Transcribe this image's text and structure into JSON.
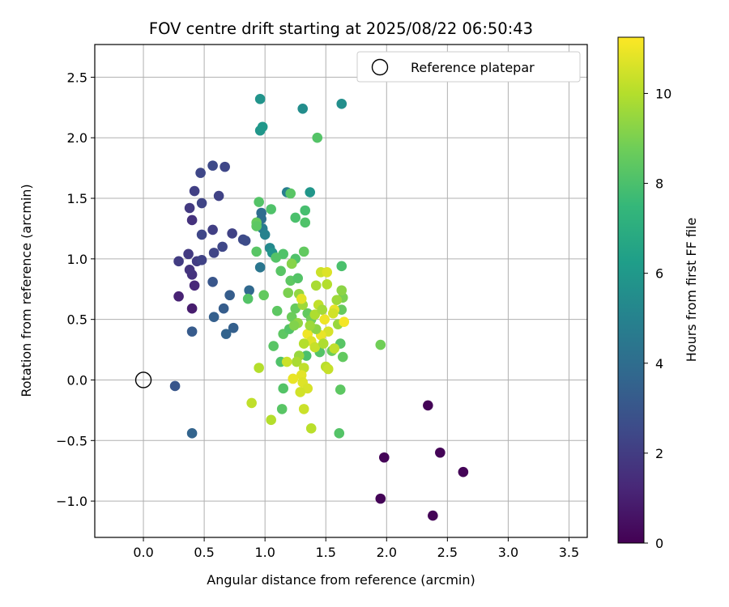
{
  "chart_data": {
    "type": "scatter",
    "title": "FOV centre drift starting at 2025/08/22 06:50:43",
    "xlabel": "Angular distance from reference (arcmin)",
    "ylabel": "Rotation from reference (arcmin)",
    "xlim": [
      -0.4,
      3.65
    ],
    "ylim": [
      -1.3,
      2.77
    ],
    "xticks": [
      "0.0",
      "0.5",
      "1.0",
      "1.5",
      "2.0",
      "2.5",
      "3.0",
      "3.5"
    ],
    "yticks": [
      "−1.0",
      "−0.5",
      "0.0",
      "0.5",
      "1.0",
      "1.5",
      "2.0",
      "2.5"
    ],
    "grid": true,
    "legend": {
      "placement": "top-right",
      "entries": [
        "Reference platepar"
      ]
    },
    "reference_point": {
      "name": "Reference platepar",
      "x": 0.0,
      "y": 0.0,
      "marker": "open-circle"
    },
    "colorbar": {
      "label": "Hours from first FF file",
      "range": [
        0,
        11.25
      ],
      "ticks": [
        "0",
        "2",
        "4",
        "6",
        "8",
        "10"
      ],
      "colormap": "viridis"
    },
    "points": [
      {
        "x": 1.95,
        "y": -0.98,
        "h": 0.1
      },
      {
        "x": 1.98,
        "y": -0.64,
        "h": 0.1
      },
      {
        "x": 2.34,
        "y": -0.21,
        "h": 0.1
      },
      {
        "x": 2.38,
        "y": -1.12,
        "h": 0.1
      },
      {
        "x": 2.44,
        "y": -0.6,
        "h": 0.1
      },
      {
        "x": 2.63,
        "y": -0.76,
        "h": 0.1
      },
      {
        "x": 0.29,
        "y": 0.69,
        "h": 1.1
      },
      {
        "x": 0.4,
        "y": 0.59,
        "h": 0.9
      },
      {
        "x": 0.42,
        "y": 0.78,
        "h": 1.3
      },
      {
        "x": 0.4,
        "y": 0.87,
        "h": 1.6
      },
      {
        "x": 0.38,
        "y": 0.91,
        "h": 1.7
      },
      {
        "x": 0.29,
        "y": 0.98,
        "h": 2.0
      },
      {
        "x": 0.37,
        "y": 1.04,
        "h": 1.9
      },
      {
        "x": 0.44,
        "y": 0.98,
        "h": 2.0
      },
      {
        "x": 0.48,
        "y": 0.99,
        "h": 2.2
      },
      {
        "x": 0.48,
        "y": 1.2,
        "h": 2.4
      },
      {
        "x": 0.4,
        "y": 1.32,
        "h": 1.6
      },
      {
        "x": 0.38,
        "y": 1.42,
        "h": 1.9
      },
      {
        "x": 0.42,
        "y": 1.56,
        "h": 2.1
      },
      {
        "x": 0.48,
        "y": 1.46,
        "h": 2.3
      },
      {
        "x": 0.47,
        "y": 1.71,
        "h": 2.4
      },
      {
        "x": 0.57,
        "y": 1.77,
        "h": 2.5
      },
      {
        "x": 0.67,
        "y": 1.76,
        "h": 2.4
      },
      {
        "x": 0.62,
        "y": 1.52,
        "h": 2.2
      },
      {
        "x": 0.57,
        "y": 1.24,
        "h": 2.1
      },
      {
        "x": 0.58,
        "y": 1.05,
        "h": 2.3
      },
      {
        "x": 0.65,
        "y": 1.1,
        "h": 2.4
      },
      {
        "x": 0.73,
        "y": 1.21,
        "h": 2.2
      },
      {
        "x": 0.82,
        "y": 1.16,
        "h": 2.5
      },
      {
        "x": 0.84,
        "y": 1.15,
        "h": 2.6
      },
      {
        "x": 0.57,
        "y": 0.81,
        "h": 3.0
      },
      {
        "x": 0.71,
        "y": 0.7,
        "h": 3.3
      },
      {
        "x": 0.66,
        "y": 0.59,
        "h": 3.3
      },
      {
        "x": 0.58,
        "y": 0.52,
        "h": 3.4
      },
      {
        "x": 0.74,
        "y": 0.43,
        "h": 3.4
      },
      {
        "x": 0.68,
        "y": 0.38,
        "h": 3.6
      },
      {
        "x": 0.4,
        "y": 0.4,
        "h": 3.2
      },
      {
        "x": 0.26,
        "y": -0.05,
        "h": 3.0
      },
      {
        "x": 0.4,
        "y": -0.44,
        "h": 3.6
      },
      {
        "x": 0.87,
        "y": 0.74,
        "h": 3.8
      },
      {
        "x": 0.96,
        "y": 0.93,
        "h": 4.4
      },
      {
        "x": 0.97,
        "y": 1.33,
        "h": 4.1
      },
      {
        "x": 0.97,
        "y": 1.38,
        "h": 4.0
      },
      {
        "x": 0.98,
        "y": 1.25,
        "h": 4.7
      },
      {
        "x": 1.0,
        "y": 1.2,
        "h": 5.0
      },
      {
        "x": 1.04,
        "y": 1.09,
        "h": 5.3
      },
      {
        "x": 1.18,
        "y": 1.55,
        "h": 4.8
      },
      {
        "x": 0.96,
        "y": 2.32,
        "h": 5.8
      },
      {
        "x": 0.96,
        "y": 2.06,
        "h": 5.9
      },
      {
        "x": 0.98,
        "y": 2.09,
        "h": 6.0
      },
      {
        "x": 1.31,
        "y": 2.24,
        "h": 5.5
      },
      {
        "x": 1.63,
        "y": 2.28,
        "h": 5.6
      },
      {
        "x": 1.37,
        "y": 1.55,
        "h": 5.9
      },
      {
        "x": 1.06,
        "y": 1.05,
        "h": 5.8
      },
      {
        "x": 1.43,
        "y": 2.0,
        "h": 8.2
      },
      {
        "x": 1.21,
        "y": 1.54,
        "h": 8.3
      },
      {
        "x": 0.95,
        "y": 1.47,
        "h": 8.2
      },
      {
        "x": 1.05,
        "y": 1.41,
        "h": 8.1
      },
      {
        "x": 1.33,
        "y": 1.4,
        "h": 7.9
      },
      {
        "x": 1.25,
        "y": 1.34,
        "h": 8.0
      },
      {
        "x": 1.33,
        "y": 1.3,
        "h": 8.1
      },
      {
        "x": 0.93,
        "y": 1.3,
        "h": 8.6
      },
      {
        "x": 0.93,
        "y": 1.27,
        "h": 8.4
      },
      {
        "x": 0.93,
        "y": 1.06,
        "h": 8.3
      },
      {
        "x": 1.15,
        "y": 1.04,
        "h": 8.1
      },
      {
        "x": 1.32,
        "y": 1.06,
        "h": 8.5
      },
      {
        "x": 1.09,
        "y": 1.01,
        "h": 8.2
      },
      {
        "x": 1.22,
        "y": 0.96,
        "h": 8.0
      },
      {
        "x": 1.25,
        "y": 1.0,
        "h": 8.1
      },
      {
        "x": 1.13,
        "y": 0.9,
        "h": 8.3
      },
      {
        "x": 1.21,
        "y": 0.82,
        "h": 8.4
      },
      {
        "x": 1.27,
        "y": 0.84,
        "h": 8.2
      },
      {
        "x": 1.63,
        "y": 0.94,
        "h": 8.0
      },
      {
        "x": 0.99,
        "y": 0.7,
        "h": 8.5
      },
      {
        "x": 0.86,
        "y": 0.67,
        "h": 8.2
      },
      {
        "x": 1.1,
        "y": 0.57,
        "h": 8.4
      },
      {
        "x": 1.25,
        "y": 0.59,
        "h": 8.6
      },
      {
        "x": 1.22,
        "y": 0.52,
        "h": 8.7
      },
      {
        "x": 1.35,
        "y": 0.55,
        "h": 8.5
      },
      {
        "x": 1.38,
        "y": 0.5,
        "h": 8.8
      },
      {
        "x": 1.15,
        "y": 0.38,
        "h": 8.4
      },
      {
        "x": 1.2,
        "y": 0.42,
        "h": 8.2
      },
      {
        "x": 1.07,
        "y": 0.28,
        "h": 8.3
      },
      {
        "x": 1.13,
        "y": 0.15,
        "h": 8.1
      },
      {
        "x": 1.15,
        "y": -0.07,
        "h": 8.2
      },
      {
        "x": 1.14,
        "y": -0.24,
        "h": 8.3
      },
      {
        "x": 1.34,
        "y": 0.2,
        "h": 8.0
      },
      {
        "x": 1.45,
        "y": 0.23,
        "h": 8.2
      },
      {
        "x": 1.62,
        "y": 0.3,
        "h": 8.3
      },
      {
        "x": 1.64,
        "y": 0.19,
        "h": 8.5
      },
      {
        "x": 1.95,
        "y": 0.29,
        "h": 8.8
      },
      {
        "x": 1.62,
        "y": -0.08,
        "h": 8.4
      },
      {
        "x": 1.61,
        "y": -0.44,
        "h": 8.2
      },
      {
        "x": 1.55,
        "y": 0.24,
        "h": 8.7
      },
      {
        "x": 1.63,
        "y": 0.58,
        "h": 8.6
      },
      {
        "x": 1.64,
        "y": 0.68,
        "h": 9.0
      },
      {
        "x": 1.19,
        "y": 0.72,
        "h": 9.0
      },
      {
        "x": 1.22,
        "y": 0.96,
        "h": 9.2
      },
      {
        "x": 1.28,
        "y": 0.71,
        "h": 9.4
      },
      {
        "x": 1.31,
        "y": 0.62,
        "h": 9.6
      },
      {
        "x": 1.42,
        "y": 0.78,
        "h": 9.8
      },
      {
        "x": 1.51,
        "y": 0.79,
        "h": 10.0
      },
      {
        "x": 1.46,
        "y": 0.89,
        "h": 10.4
      },
      {
        "x": 1.51,
        "y": 0.89,
        "h": 10.7
      },
      {
        "x": 1.59,
        "y": 0.66,
        "h": 9.6
      },
      {
        "x": 1.63,
        "y": 0.74,
        "h": 9.3
      },
      {
        "x": 1.3,
        "y": 0.67,
        "h": 10.8
      },
      {
        "x": 1.41,
        "y": 0.54,
        "h": 9.9
      },
      {
        "x": 1.44,
        "y": 0.62,
        "h": 10.2
      },
      {
        "x": 1.47,
        "y": 0.58,
        "h": 9.7
      },
      {
        "x": 1.57,
        "y": 0.58,
        "h": 10.9
      },
      {
        "x": 1.56,
        "y": 0.55,
        "h": 10.5
      },
      {
        "x": 1.49,
        "y": 0.5,
        "h": 11.0
      },
      {
        "x": 1.6,
        "y": 0.46,
        "h": 9.5
      },
      {
        "x": 1.65,
        "y": 0.48,
        "h": 11.1
      },
      {
        "x": 1.52,
        "y": 0.4,
        "h": 10.6
      },
      {
        "x": 1.46,
        "y": 0.37,
        "h": 10.9
      },
      {
        "x": 1.35,
        "y": 0.38,
        "h": 11.0
      },
      {
        "x": 1.38,
        "y": 0.32,
        "h": 10.7
      },
      {
        "x": 1.41,
        "y": 0.27,
        "h": 10.3
      },
      {
        "x": 1.32,
        "y": 0.3,
        "h": 10.0
      },
      {
        "x": 1.48,
        "y": 0.3,
        "h": 9.9
      },
      {
        "x": 1.57,
        "y": 0.26,
        "h": 10.2
      },
      {
        "x": 1.27,
        "y": 0.47,
        "h": 9.4
      },
      {
        "x": 1.24,
        "y": 0.45,
        "h": 9.1
      },
      {
        "x": 1.28,
        "y": 0.2,
        "h": 9.5
      },
      {
        "x": 1.26,
        "y": 0.15,
        "h": 9.8
      },
      {
        "x": 1.18,
        "y": 0.15,
        "h": 10.4
      },
      {
        "x": 1.32,
        "y": 0.1,
        "h": 10.2
      },
      {
        "x": 1.5,
        "y": 0.11,
        "h": 10.1
      },
      {
        "x": 1.52,
        "y": 0.09,
        "h": 10.3
      },
      {
        "x": 1.3,
        "y": 0.04,
        "h": 10.8
      },
      {
        "x": 1.23,
        "y": 0.01,
        "h": 10.9
      },
      {
        "x": 1.31,
        "y": -0.02,
        "h": 10.7
      },
      {
        "x": 1.35,
        "y": -0.07,
        "h": 10.6
      },
      {
        "x": 1.29,
        "y": -0.1,
        "h": 10.5
      },
      {
        "x": 1.32,
        "y": -0.24,
        "h": 10.4
      },
      {
        "x": 1.38,
        "y": -0.4,
        "h": 10.1
      },
      {
        "x": 1.05,
        "y": -0.33,
        "h": 10.0
      },
      {
        "x": 0.89,
        "y": -0.19,
        "h": 10.2
      },
      {
        "x": 0.95,
        "y": 0.1,
        "h": 10.0
      },
      {
        "x": 1.42,
        "y": 0.42,
        "h": 9.3
      },
      {
        "x": 1.37,
        "y": 0.45,
        "h": 9.6
      }
    ]
  }
}
